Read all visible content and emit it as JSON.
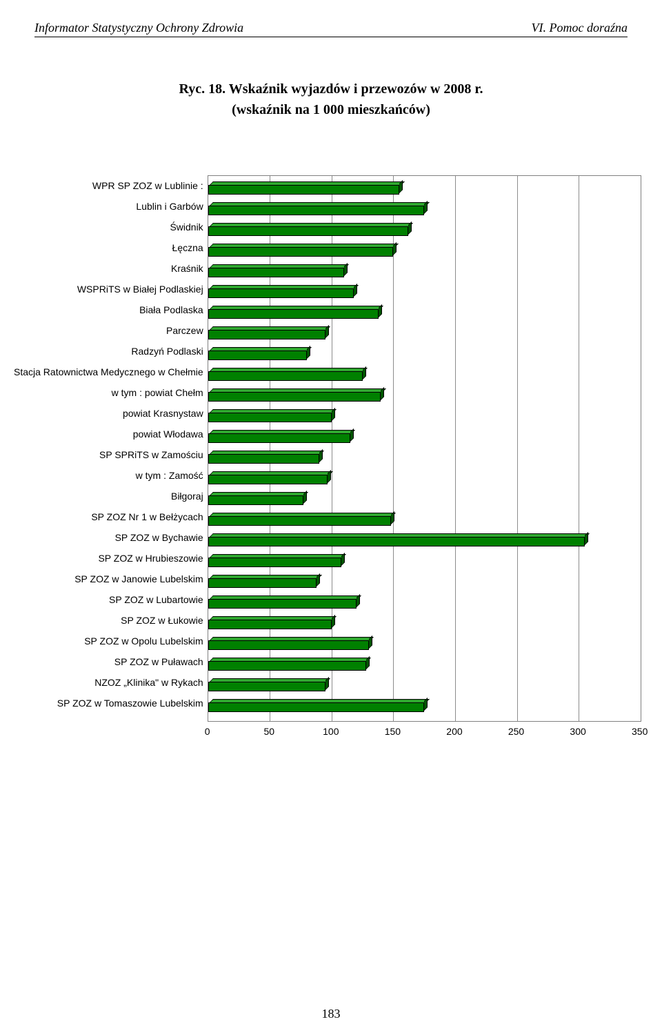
{
  "header": {
    "left": "Informator Statystyczny Ochrony Zdrowia",
    "right": "VI. Pomoc doraźna"
  },
  "title": {
    "line1": "Ryc. 18. Wskaźnik wyjazdów i przewozów w 2008 r.",
    "line2": "(wskaźnik na 1 000 mieszkańców)"
  },
  "chart": {
    "type": "bar-horizontal-3d",
    "xmin": 0,
    "xmax": 350,
    "xtick_step": 50,
    "bar_front_color": "#008000",
    "bar_top_color": "#2fa82f",
    "bar_side_color": "#005500",
    "grid_color": "#808080",
    "background_color": "#ffffff",
    "label_fontsize": 14,
    "tick_fontsize": 14,
    "categories": [
      {
        "label": "WPR SP ZOZ w Lublinie :",
        "value": 155
      },
      {
        "label": "Lublin i Garbów",
        "value": 175
      },
      {
        "label": "Świdnik",
        "value": 162
      },
      {
        "label": "Łęczna",
        "value": 150
      },
      {
        "label": "Kraśnik",
        "value": 110
      },
      {
        "label": "WSPRiTS w Białej Podlaskiej",
        "value": 118
      },
      {
        "label": "Biała Podlaska",
        "value": 138
      },
      {
        "label": "Parczew",
        "value": 95
      },
      {
        "label": "Radzyń Podlaski",
        "value": 80
      },
      {
        "label": "Stacja Ratownictwa Medycznego w Chełmie",
        "value": 125
      },
      {
        "label": "w tym : powiat Chełm",
        "value": 140
      },
      {
        "label": "powiat Krasnystaw",
        "value": 100
      },
      {
        "label": "powiat Włodawa",
        "value": 115
      },
      {
        "label": "SP SPRiTS w Zamościu",
        "value": 90
      },
      {
        "label": "w tym : Zamość",
        "value": 97
      },
      {
        "label": "Biłgoraj",
        "value": 77
      },
      {
        "label": "SP ZOZ Nr 1 w Bełżycach",
        "value": 148
      },
      {
        "label": "SP ZOZ w Bychawie",
        "value": 305
      },
      {
        "label": "SP ZOZ w Hrubieszowie",
        "value": 108
      },
      {
        "label": "SP ZOZ w Janowie Lubelskim",
        "value": 88
      },
      {
        "label": "SP ZOZ w Lubartowie",
        "value": 120
      },
      {
        "label": "SP ZOZ w Łukowie",
        "value": 100
      },
      {
        "label": "SP ZOZ w Opolu Lubelskim",
        "value": 130
      },
      {
        "label": "SP ZOZ w Puławach",
        "value": 128
      },
      {
        "label": "NZOZ „Klinika\" w Rykach",
        "value": 95
      },
      {
        "label": "SP ZOZ w Tomaszowie Lubelskim",
        "value": 175
      }
    ],
    "xticks": [
      0,
      50,
      100,
      150,
      200,
      250,
      300,
      350
    ]
  },
  "page_number": "183"
}
